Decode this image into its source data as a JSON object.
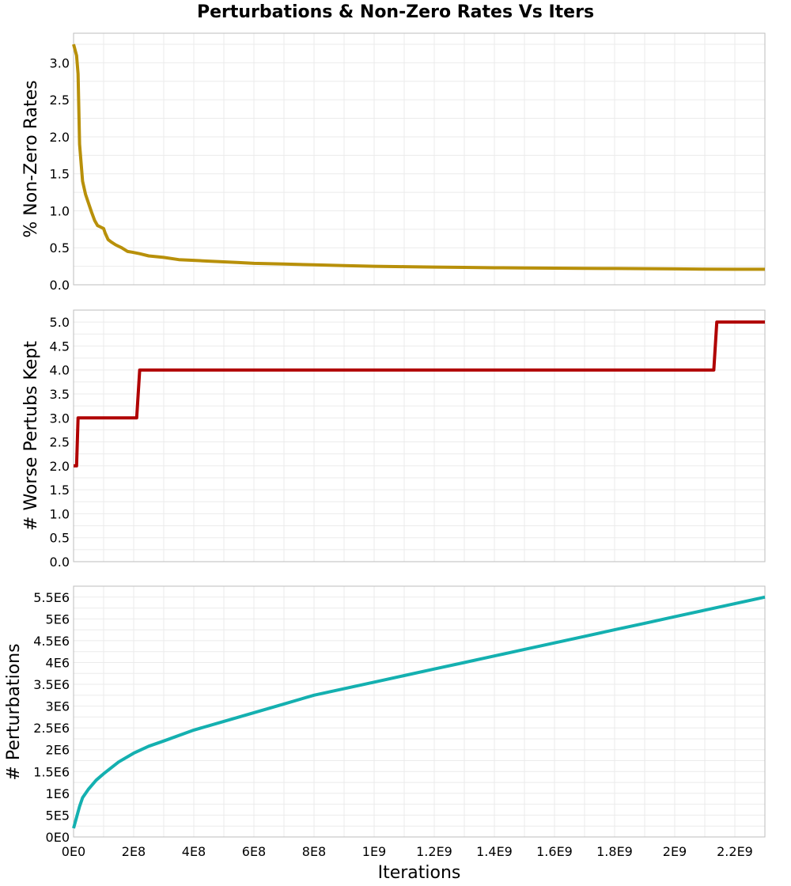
{
  "title": "Perturbations & Non-Zero Rates Vs Iters",
  "chart_data": [
    {
      "type": "line",
      "ylabel": "% Non-Zero Rates",
      "ylim": [
        0,
        3.4
      ],
      "yticks": [
        "0.0",
        "0.5",
        "1.0",
        "1.5",
        "2.0",
        "2.5",
        "3.0"
      ],
      "tickvals": [
        0,
        0.5,
        1.0,
        1.5,
        2.0,
        2.5,
        3.0
      ],
      "grid": true,
      "color": "#b8900a",
      "series": [
        {
          "x": [
            0.0,
            0.1,
            0.15,
            0.2,
            0.3,
            0.4,
            0.5,
            0.6,
            0.7,
            0.8,
            0.9,
            1.0,
            1.05,
            1.15,
            1.25,
            1.4,
            1.6,
            1.8,
            1.95,
            2.2,
            2.5,
            3.0,
            3.5,
            4.0,
            4.5,
            5.0,
            5.5,
            6.0,
            7.0,
            8.0,
            9.0,
            10.0,
            11.0,
            12.0,
            13.0,
            14.0,
            15.0,
            16.0,
            17.0,
            18.0,
            19.0,
            20.0,
            21.0,
            22.0,
            23.0
          ],
          "y": [
            3.25,
            3.1,
            2.85,
            1.9,
            1.4,
            1.22,
            1.1,
            0.98,
            0.87,
            0.8,
            0.78,
            0.76,
            0.7,
            0.61,
            0.58,
            0.54,
            0.5,
            0.45,
            0.44,
            0.42,
            0.39,
            0.37,
            0.34,
            0.33,
            0.32,
            0.31,
            0.3,
            0.29,
            0.28,
            0.27,
            0.26,
            0.25,
            0.245,
            0.24,
            0.235,
            0.23,
            0.228,
            0.225,
            0.222,
            0.22,
            0.218,
            0.215,
            0.212,
            0.21,
            0.21
          ]
        }
      ]
    },
    {
      "type": "line",
      "ylabel": "# Worse Pertubs Kept",
      "ylim": [
        0,
        5.25
      ],
      "yticks": [
        "0.0",
        "0.5",
        "1.0",
        "1.5",
        "2.0",
        "2.5",
        "3.0",
        "3.5",
        "4.0",
        "4.5",
        "5.0"
      ],
      "tickvals": [
        0,
        0.5,
        1.0,
        1.5,
        2.0,
        2.5,
        3.0,
        3.5,
        4.0,
        4.5,
        5.0
      ],
      "grid": true,
      "color": "#b00000",
      "series": [
        {
          "x": [
            0.0,
            0.1,
            0.15,
            2.1,
            2.2,
            21.3,
            21.4,
            23.0
          ],
          "y": [
            2,
            2,
            3,
            3,
            4,
            4,
            5,
            5
          ]
        }
      ]
    },
    {
      "type": "line",
      "ylabel": "# Perturbations",
      "xlabel": "Iterations",
      "ylim": [
        0,
        5.75
      ],
      "yticks": [
        "0E0",
        "5E5",
        "1E6",
        "1.5E6",
        "2E6",
        "2.5E6",
        "3E6",
        "3.5E6",
        "4E6",
        "4.5E6",
        "5E6",
        "5.5E6"
      ],
      "tickvals": [
        0,
        0.5,
        1.0,
        1.5,
        2.0,
        2.5,
        3.0,
        3.5,
        4.0,
        4.5,
        5.0,
        5.5
      ],
      "y_unit_multiplier": 1000000,
      "grid": true,
      "color": "#14b0b0",
      "series": [
        {
          "x": [
            0.0,
            0.1,
            0.2,
            0.3,
            0.5,
            0.75,
            1.0,
            1.5,
            2.0,
            2.5,
            3.0,
            4.0,
            5.0,
            6.0,
            7.0,
            8.0,
            9.0,
            10.0,
            11.0,
            12.0,
            13.0,
            14.0,
            15.0,
            16.0,
            17.0,
            18.0,
            19.0,
            20.0,
            21.0,
            22.0,
            23.0
          ],
          "y": [
            0.2,
            0.45,
            0.7,
            0.9,
            1.1,
            1.3,
            1.45,
            1.72,
            1.92,
            2.08,
            2.2,
            2.45,
            2.65,
            2.85,
            3.05,
            3.25,
            3.4,
            3.55,
            3.7,
            3.85,
            4.0,
            4.15,
            4.3,
            4.45,
            4.6,
            4.75,
            4.9,
            5.05,
            5.2,
            5.35,
            5.5
          ]
        }
      ]
    }
  ],
  "x_axis": {
    "label": "Iterations",
    "xlim": [
      0,
      23
    ],
    "x_unit_multiplier": 100000000,
    "tickvals": [
      0,
      2,
      4,
      6,
      8,
      10,
      12,
      14,
      16,
      18,
      20,
      22
    ],
    "ticks": [
      "0E0",
      "2E8",
      "4E8",
      "6E8",
      "8E8",
      "1E9",
      "1.2E9",
      "1.4E9",
      "1.6E9",
      "1.8E9",
      "2E9",
      "2.2E9"
    ]
  }
}
